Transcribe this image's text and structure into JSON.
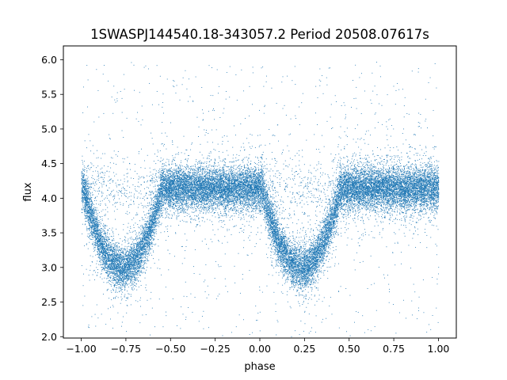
{
  "chart_data": {
    "type": "scatter",
    "title": "1SWASPJ144540.18-343057.2 Period 20508.07617s",
    "xlabel": "phase",
    "ylabel": "flux",
    "xlim": [
      -1.1,
      1.1
    ],
    "ylim": [
      1.98,
      6.2
    ],
    "xticks": [
      -1.0,
      -0.75,
      -0.5,
      -0.25,
      0.0,
      0.25,
      0.5,
      0.75,
      1.0
    ],
    "xtick_labels": [
      "−1.00",
      "−0.75",
      "−0.50",
      "−0.25",
      "0.00",
      "0.25",
      "0.50",
      "0.75",
      "1.00"
    ],
    "yticks": [
      2.0,
      2.5,
      3.0,
      3.5,
      4.0,
      4.5,
      5.0,
      5.5,
      6.0
    ],
    "ytick_labels": [
      "2.0",
      "2.5",
      "3.0",
      "3.5",
      "4.0",
      "4.5",
      "5.0",
      "5.5",
      "6.0"
    ],
    "grid": false,
    "marker_color": "#1f77b4",
    "series": [
      {
        "description": "dense light-curve points, phase folded over two cycles",
        "x_range": [
          -1.0,
          1.0
        ],
        "baseline_flux": 4.15,
        "baseline_scatter": 0.15,
        "eclipse_minima": [
          {
            "phase": -0.77,
            "flux": 3.0
          },
          {
            "phase": 0.23,
            "flux": 3.0
          }
        ],
        "eclipse_half_width": 0.22,
        "outlier_range": [
          2.0,
          6.0
        ]
      }
    ]
  }
}
